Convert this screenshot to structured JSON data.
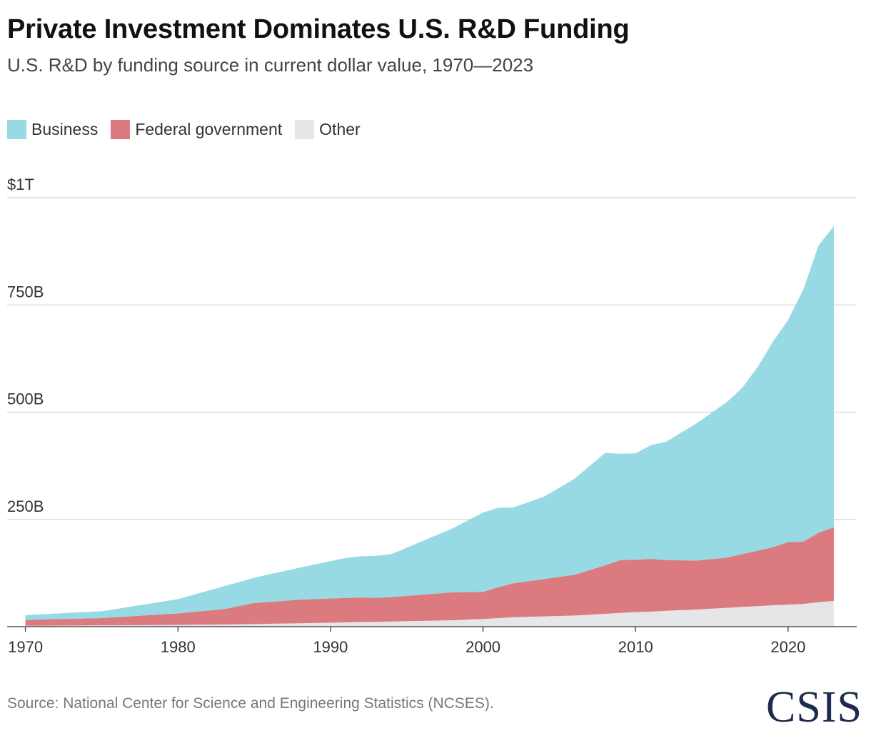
{
  "chart_data": {
    "type": "area",
    "stacked": true,
    "title": "Private Investment Dominates U.S. R&D Funding",
    "subtitle": "U.S. R&D by funding source in current dollar value, 1970—2023",
    "xlabel": "",
    "ylabel": "",
    "xlim": [
      1968.8,
      2024.5
    ],
    "ylim": [
      0,
      1000
    ],
    "y_ticks": [
      {
        "value": 250,
        "label": "250B"
      },
      {
        "value": 500,
        "label": "500B"
      },
      {
        "value": 750,
        "label": "750B"
      },
      {
        "value": 1000,
        "label": "$1T"
      }
    ],
    "x_ticks": [
      {
        "value": 1970,
        "label": "1970"
      },
      {
        "value": 1980,
        "label": "1980"
      },
      {
        "value": 1990,
        "label": "1990"
      },
      {
        "value": 2000,
        "label": "2000"
      },
      {
        "value": 2010,
        "label": "2010"
      },
      {
        "value": 2020,
        "label": "2020"
      }
    ],
    "grid": true,
    "legend_position": "top-left",
    "x": [
      1970,
      1975,
      1980,
      1983,
      1985,
      1988,
      1991,
      1992,
      1993,
      1994,
      1998,
      2000,
      2001,
      2002,
      2004,
      2006,
      2008,
      2009,
      2010,
      2011,
      2012,
      2014,
      2016,
      2017,
      2018,
      2019,
      2020,
      2021,
      2022,
      2023
    ],
    "series": [
      {
        "name": "Other",
        "color": "#e5e6e8",
        "values": [
          2,
          3,
          4,
          5,
          6,
          8,
          10,
          11,
          11,
          12,
          15,
          18,
          20,
          22,
          24,
          26,
          30,
          32,
          34,
          35,
          37,
          40,
          44,
          46,
          48,
          50,
          51,
          53,
          57,
          60
        ]
      },
      {
        "name": "Federal government",
        "color": "#db7b80",
        "values": [
          14,
          17,
          27,
          36,
          49,
          55,
          57,
          57,
          56,
          57,
          65,
          63,
          72,
          79,
          87,
          95,
          113,
          123,
          122,
          123,
          118,
          114,
          117,
          123,
          129,
          135,
          146,
          145,
          162,
          172
        ]
      },
      {
        "name": "Business",
        "color": "#98dae3",
        "values": [
          11,
          16,
          33,
          53,
          59,
          75,
          93,
          96,
          98,
          100,
          149,
          185,
          185,
          177,
          192,
          224,
          262,
          248,
          248,
          265,
          276,
          320,
          363,
          388,
          428,
          479,
          518,
          588,
          670,
          702
        ]
      }
    ]
  },
  "legend": [
    {
      "label": "Business",
      "color": "#98dae3"
    },
    {
      "label": "Federal government",
      "color": "#db7b80"
    },
    {
      "label": "Other",
      "color": "#e5e6e8"
    }
  ],
  "source": "Source: National Center for Science and Engineering Statistics (NCSES).",
  "logo_text": "CSIS"
}
